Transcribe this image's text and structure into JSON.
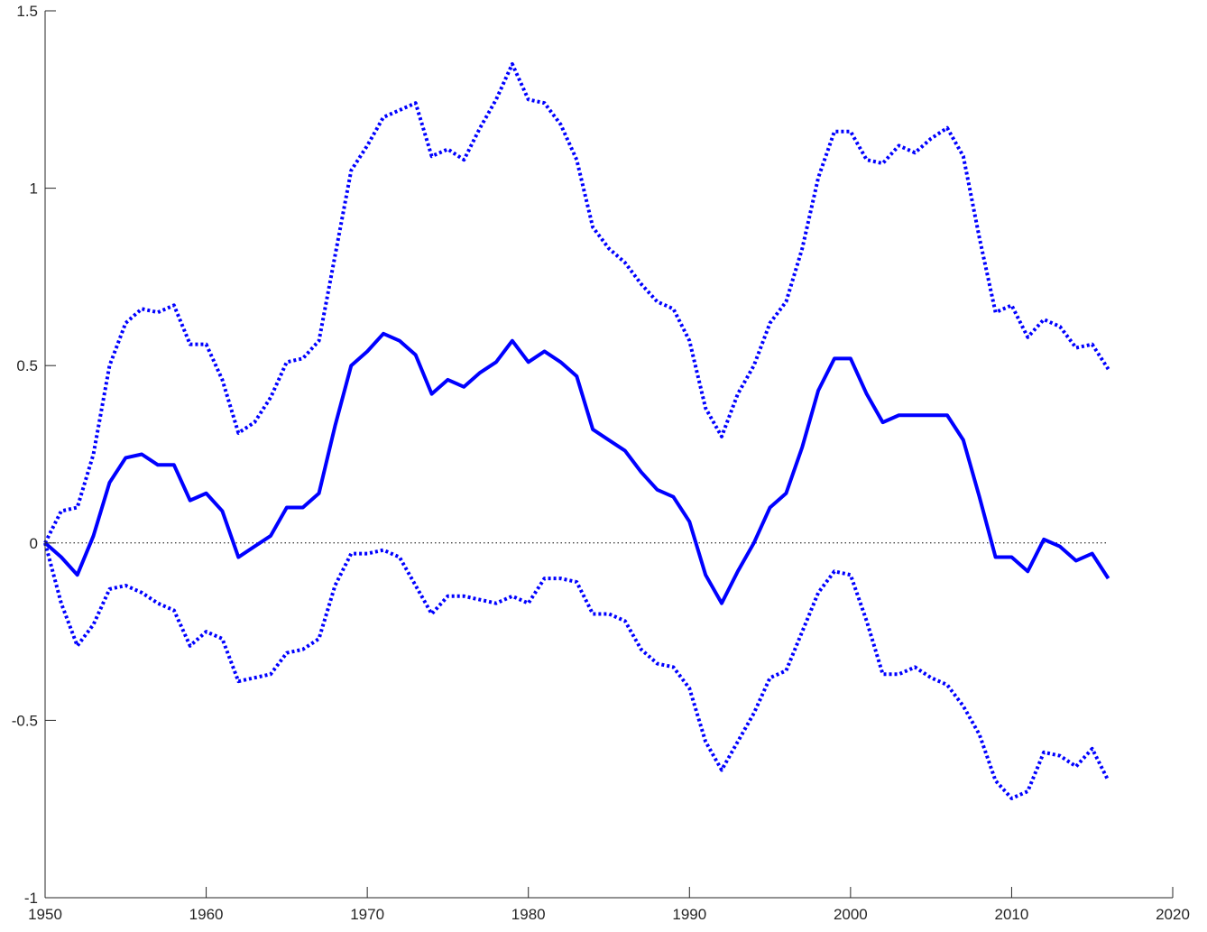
{
  "chart_data": {
    "type": "line",
    "title": "",
    "xlabel": "",
    "ylabel": "",
    "xlim": [
      1950,
      2020
    ],
    "ylim": [
      -1,
      1.5
    ],
    "grid": false,
    "legend": "none",
    "x_ticks": [
      1950,
      1960,
      1970,
      1980,
      1990,
      2000,
      2010,
      2020
    ],
    "y_ticks": [
      -1,
      -0.5,
      0,
      0.5,
      1,
      1.5
    ],
    "x_tick_labels": [
      "1950",
      "1960",
      "1970",
      "1980",
      "1990",
      "2000",
      "2010",
      "2020"
    ],
    "y_tick_labels": [
      "-1",
      "-0.5",
      "0",
      "0.5",
      "1",
      "1.5"
    ],
    "reference_line": {
      "y": 0,
      "style": "dotted",
      "color": "#000000"
    },
    "x": [
      1950,
      1951,
      1952,
      1953,
      1954,
      1955,
      1956,
      1957,
      1958,
      1959,
      1960,
      1961,
      1962,
      1963,
      1964,
      1965,
      1966,
      1967,
      1968,
      1969,
      1970,
      1971,
      1972,
      1973,
      1974,
      1975,
      1976,
      1977,
      1978,
      1979,
      1980,
      1981,
      1982,
      1983,
      1984,
      1985,
      1986,
      1987,
      1988,
      1989,
      1990,
      1991,
      1992,
      1993,
      1994,
      1995,
      1996,
      1997,
      1998,
      1999,
      2000,
      2001,
      2002,
      2003,
      2004,
      2005,
      2006,
      2007,
      2008,
      2009,
      2010,
      2011,
      2012,
      2013,
      2014,
      2015,
      2016
    ],
    "series": [
      {
        "style": "solid",
        "color": "#0000ff",
        "values": [
          0.0,
          -0.04,
          -0.09,
          0.02,
          0.17,
          0.24,
          0.25,
          0.22,
          0.22,
          0.12,
          0.14,
          0.09,
          -0.04,
          -0.01,
          0.02,
          0.1,
          0.1,
          0.14,
          0.33,
          0.5,
          0.54,
          0.59,
          0.57,
          0.53,
          0.42,
          0.46,
          0.44,
          0.48,
          0.51,
          0.57,
          0.51,
          0.54,
          0.51,
          0.47,
          0.32,
          0.29,
          0.26,
          0.2,
          0.15,
          0.13,
          0.06,
          -0.09,
          -0.17,
          -0.08,
          0.0,
          0.1,
          0.14,
          0.27,
          0.43,
          0.52,
          0.52,
          0.42,
          0.34,
          0.36,
          0.36,
          0.36,
          0.36,
          0.29,
          0.13,
          -0.04,
          -0.04,
          -0.08,
          0.01,
          -0.01,
          -0.05,
          -0.03,
          -0.1
        ]
      },
      {
        "style": "dotted",
        "color": "#0000ff",
        "values": [
          0.0,
          0.09,
          0.1,
          0.25,
          0.5,
          0.62,
          0.66,
          0.65,
          0.67,
          0.56,
          0.56,
          0.46,
          0.31,
          0.34,
          0.41,
          0.51,
          0.52,
          0.57,
          0.81,
          1.05,
          1.12,
          1.2,
          1.22,
          1.24,
          1.09,
          1.11,
          1.08,
          1.17,
          1.25,
          1.35,
          1.25,
          1.24,
          1.18,
          1.08,
          0.89,
          0.83,
          0.79,
          0.73,
          0.68,
          0.66,
          0.57,
          0.38,
          0.3,
          0.42,
          0.5,
          0.62,
          0.68,
          0.83,
          1.03,
          1.16,
          1.16,
          1.08,
          1.07,
          1.12,
          1.1,
          1.14,
          1.17,
          1.09,
          0.86,
          0.65,
          0.67,
          0.58,
          0.63,
          0.61,
          0.55,
          0.56,
          0.49
        ]
      },
      {
        "style": "dotted",
        "color": "#0000ff",
        "values": [
          0.0,
          -0.17,
          -0.29,
          -0.23,
          -0.13,
          -0.12,
          -0.14,
          -0.17,
          -0.19,
          -0.29,
          -0.25,
          -0.27,
          -0.39,
          -0.38,
          -0.37,
          -0.31,
          -0.3,
          -0.27,
          -0.12,
          -0.03,
          -0.03,
          -0.02,
          -0.04,
          -0.12,
          -0.2,
          -0.15,
          -0.15,
          -0.16,
          -0.17,
          -0.15,
          -0.17,
          -0.1,
          -0.1,
          -0.11,
          -0.2,
          -0.2,
          -0.22,
          -0.3,
          -0.34,
          -0.35,
          -0.41,
          -0.56,
          -0.64,
          -0.56,
          -0.48,
          -0.38,
          -0.36,
          -0.25,
          -0.14,
          -0.08,
          -0.09,
          -0.22,
          -0.37,
          -0.37,
          -0.35,
          -0.38,
          -0.4,
          -0.46,
          -0.54,
          -0.67,
          -0.72,
          -0.7,
          -0.59,
          -0.6,
          -0.63,
          -0.58,
          -0.67
        ]
      }
    ]
  }
}
